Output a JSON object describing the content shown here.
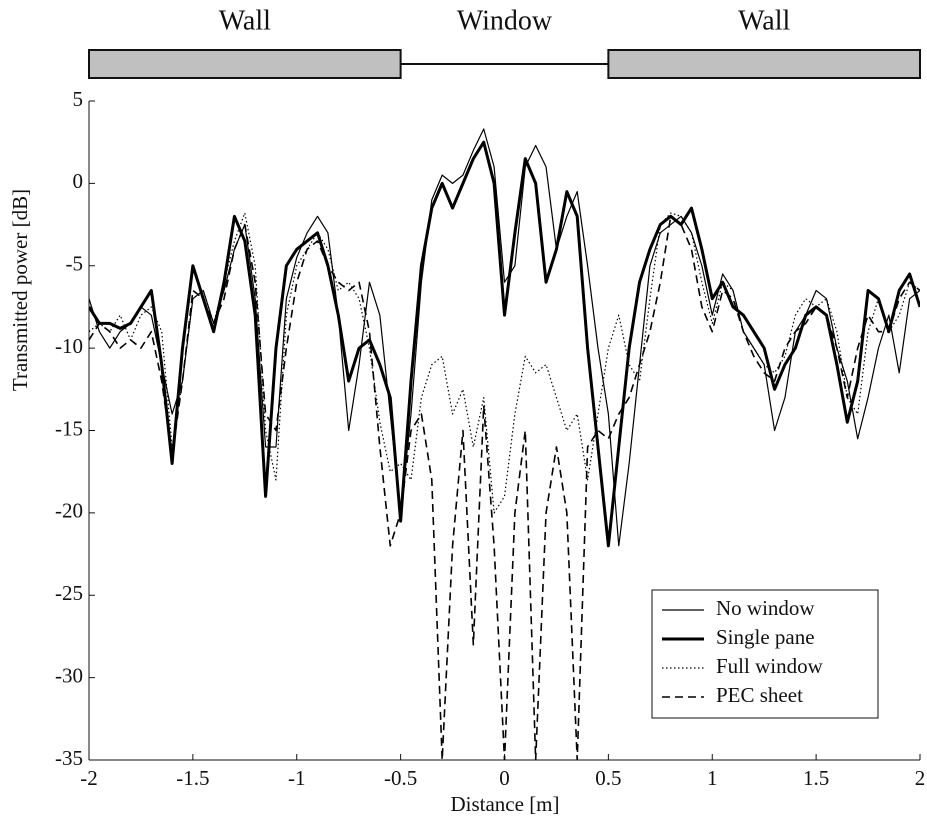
{
  "chart_data": {
    "type": "line",
    "x_label": "Distance [m]",
    "y_label": "Transmitted power [dB]",
    "regions": [
      {
        "label": "Wall",
        "from": -2,
        "to": -0.5,
        "color": "#c0c0c0"
      },
      {
        "label": "Window",
        "from": -0.5,
        "to": 0.5
      },
      {
        "label": "Wall",
        "from": 0.5,
        "to": 2,
        "color": "#c0c0c0"
      }
    ],
    "x": [
      -2,
      -1.95,
      -1.9,
      -1.85,
      -1.8,
      -1.75,
      -1.7,
      -1.65,
      -1.6,
      -1.55,
      -1.5,
      -1.45,
      -1.4,
      -1.35,
      -1.3,
      -1.25,
      -1.2,
      -1.15,
      -1.1,
      -1.05,
      -1,
      -0.95,
      -0.9,
      -0.85,
      -0.8,
      -0.75,
      -0.7,
      -0.65,
      -0.6,
      -0.55,
      -0.5,
      -0.45,
      -0.4,
      -0.35,
      -0.3,
      -0.25,
      -0.2,
      -0.15,
      -0.1,
      -0.05,
      0,
      0.05,
      0.1,
      0.15,
      0.2,
      0.25,
      0.3,
      0.35,
      0.4,
      0.45,
      0.5,
      0.55,
      0.6,
      0.65,
      0.7,
      0.75,
      0.8,
      0.85,
      0.9,
      0.95,
      1,
      1.05,
      1.1,
      1.15,
      1.2,
      1.25,
      1.3,
      1.35,
      1.4,
      1.45,
      1.5,
      1.55,
      1.6,
      1.65,
      1.7,
      1.75,
      1.8,
      1.85,
      1.9,
      1.95,
      2
    ],
    "series": [
      {
        "name": "No window",
        "color": "#000000",
        "style": "thin",
        "values": [
          -7,
          -9,
          -10,
          -9,
          -8.5,
          -7.5,
          -8,
          -11,
          -14,
          -12,
          -7,
          -6.5,
          -8.5,
          -6.5,
          -4,
          -2.5,
          -7,
          -16,
          -16,
          -7,
          -4.5,
          -3,
          -2,
          -3,
          -8,
          -15,
          -11,
          -6,
          -8,
          -14,
          -20,
          -14,
          -6,
          -1,
          0.5,
          0,
          0.5,
          2,
          3.3,
          1,
          -6,
          -5,
          1,
          2.3,
          1,
          -4,
          -2,
          -0.5,
          -5,
          -10,
          -14,
          -22,
          -17,
          -11,
          -5,
          -3,
          -2.5,
          -2,
          -3,
          -5,
          -8,
          -5.5,
          -6.5,
          -9,
          -10,
          -11,
          -15,
          -13,
          -9,
          -8,
          -6.5,
          -7,
          -10,
          -12,
          -15.5,
          -13,
          -10,
          -8,
          -11.5,
          -7,
          -6.5
        ]
      },
      {
        "name": "Single pane",
        "color": "#000000",
        "style": "thick",
        "values": [
          -7.5,
          -8.5,
          -8.5,
          -8.8,
          -8.5,
          -7.5,
          -6.5,
          -11,
          -17,
          -10,
          -5,
          -7,
          -9,
          -6,
          -2,
          -3.5,
          -8,
          -19,
          -10,
          -5,
          -4,
          -3.5,
          -3,
          -5,
          -8,
          -12,
          -10,
          -9.5,
          -11,
          -13,
          -20.5,
          -12,
          -5,
          -1.5,
          0,
          -1.5,
          0,
          1.5,
          2.5,
          0,
          -8,
          -3,
          1.5,
          0,
          -6,
          -4,
          -0.5,
          -2,
          -10,
          -16,
          -22,
          -16,
          -10,
          -6,
          -4,
          -2.5,
          -2,
          -2.5,
          -1.5,
          -4,
          -7,
          -6,
          -7.5,
          -8,
          -9,
          -10,
          -12.5,
          -11,
          -10,
          -8,
          -7.5,
          -8,
          -11,
          -14.5,
          -12,
          -6.5,
          -7,
          -9,
          -6.5,
          -5.5,
          -7.5
        ]
      },
      {
        "name": "Full window",
        "color": "#000000",
        "style": "dotted",
        "values": [
          -9,
          -8.5,
          -9,
          -8,
          -9.5,
          -8,
          -7.5,
          -9,
          -16,
          -12,
          -7,
          -6.5,
          -8.5,
          -6,
          -3.5,
          -1.8,
          -5,
          -15,
          -18,
          -8,
          -5,
          -4,
          -3,
          -4,
          -6.5,
          -6,
          -7,
          -10,
          -14.5,
          -17.5,
          -17,
          -18,
          -13,
          -11,
          -10.5,
          -14,
          -12.5,
          -16,
          -13,
          -20,
          -19,
          -14,
          -10.5,
          -11.5,
          -11,
          -13,
          -15,
          -14,
          -18,
          -14,
          -10,
          -8,
          -11,
          -12,
          -7,
          -2.5,
          -1.8,
          -2,
          -3,
          -6,
          -8.5,
          -6,
          -6.5,
          -9,
          -10,
          -11,
          -11.5,
          -10.5,
          -8,
          -7,
          -7.5,
          -7,
          -9,
          -13,
          -14,
          -9,
          -7,
          -9,
          -8,
          -6,
          -6.5
        ]
      },
      {
        "name": "PEC sheet",
        "color": "#000000",
        "style": "dashed",
        "values": [
          -9.5,
          -8.5,
          -9,
          -10,
          -9.5,
          -10,
          -9,
          -12,
          -16.5,
          -12,
          -6.5,
          -7,
          -8.5,
          -7,
          -4,
          -2.5,
          -6,
          -14,
          -15,
          -10,
          -6,
          -4,
          -3.5,
          -5,
          -6,
          -6.5,
          -6,
          -9,
          -16,
          -22,
          -20,
          -15,
          -14,
          -18,
          -35,
          -22,
          -15,
          -28,
          -13.5,
          -22,
          -35,
          -20,
          -15,
          -35,
          -20,
          -16,
          -20,
          -35,
          -16,
          -15,
          -15.5,
          -14,
          -13,
          -11,
          -9,
          -6,
          -2,
          -2.5,
          -4,
          -7.5,
          -9,
          -6.5,
          -7,
          -9,
          -10.5,
          -11.5,
          -12,
          -10,
          -9,
          -8.5,
          -7.5,
          -8,
          -10,
          -13,
          -10,
          -8,
          -9,
          -9,
          -7,
          -6,
          -6.5
        ]
      }
    ],
    "xlim": [
      -2,
      2
    ],
    "ylim": [
      -35,
      5
    ],
    "xticks": [
      -2,
      -1.5,
      -1,
      -0.5,
      0,
      0.5,
      1,
      1.5,
      2
    ],
    "yticks": [
      5,
      0,
      -5,
      -10,
      -15,
      -20,
      -25,
      -30,
      -35
    ],
    "legend": "lower right"
  }
}
